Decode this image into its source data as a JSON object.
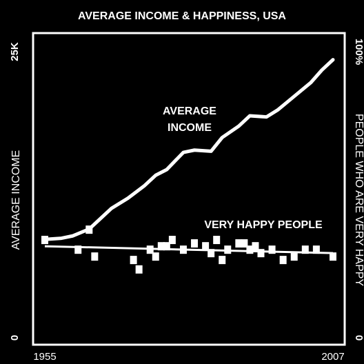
{
  "chart_data": {
    "type": "line",
    "title": "AVERAGE INCOME & HAPPINESS, USA",
    "ylabel": "AVERAGE INCOME",
    "y2label": "PEOPLE WHO ARE VERY HAPPY",
    "xlim": [
      1955,
      2007
    ],
    "xticks": [
      1955,
      2007
    ],
    "ylim": [
      0,
      25000
    ],
    "yticks": [
      0,
      {
        "value": 25000,
        "label": "25K"
      }
    ],
    "y2lim": [
      0,
      100
    ],
    "y2ticks": [
      0,
      {
        "value": 100,
        "label": "100%"
      }
    ],
    "color": "#ffffff",
    "background": "#000000",
    "series": [
      {
        "label": [
          "AVERAGE",
          "INCOME"
        ],
        "axis": "y",
        "marker": "line",
        "x": [
          1955,
          1958,
          1960,
          1963,
          1965,
          1967,
          1970,
          1973,
          1975,
          1977,
          1980,
          1982,
          1985,
          1987,
          1990,
          1992,
          1995,
          1997,
          2000,
          2003,
          2005,
          2007
        ],
        "values": [
          8600,
          8700,
          8900,
          9500,
          10400,
          11300,
          12200,
          13300,
          14200,
          14700,
          16200,
          16400,
          16300,
          17500,
          18500,
          19400,
          19300,
          19900,
          21100,
          22300,
          23400,
          24300
        ]
      },
      {
        "label": [
          "VERY HAPPY PEOPLE"
        ],
        "axis": "y2",
        "marker": "square",
        "x": [
          1955,
          1961,
          1963,
          1964,
          1971,
          1972,
          1974,
          1975,
          1976,
          1977,
          1978,
          1980,
          1982,
          1984,
          1985,
          1986,
          1987,
          1988,
          1990,
          1991,
          1992,
          1993,
          1994,
          1996,
          1998,
          2000,
          2002,
          2004,
          2007
        ],
        "values": [
          34.2,
          30.8,
          37.8,
          28.4,
          27.2,
          23.9,
          30.8,
          28.4,
          32.0,
          32.0,
          34.2,
          30.8,
          33.0,
          32.0,
          29.6,
          34.2,
          27.2,
          30.8,
          33.0,
          33.0,
          30.8,
          32.0,
          29.6,
          30.8,
          27.2,
          28.4,
          30.8,
          30.8,
          28.4
        ]
      }
    ],
    "trend": {
      "axis": "y2",
      "x": [
        1955,
        2007
      ],
      "values": [
        32.0,
        29.6
      ]
    }
  }
}
